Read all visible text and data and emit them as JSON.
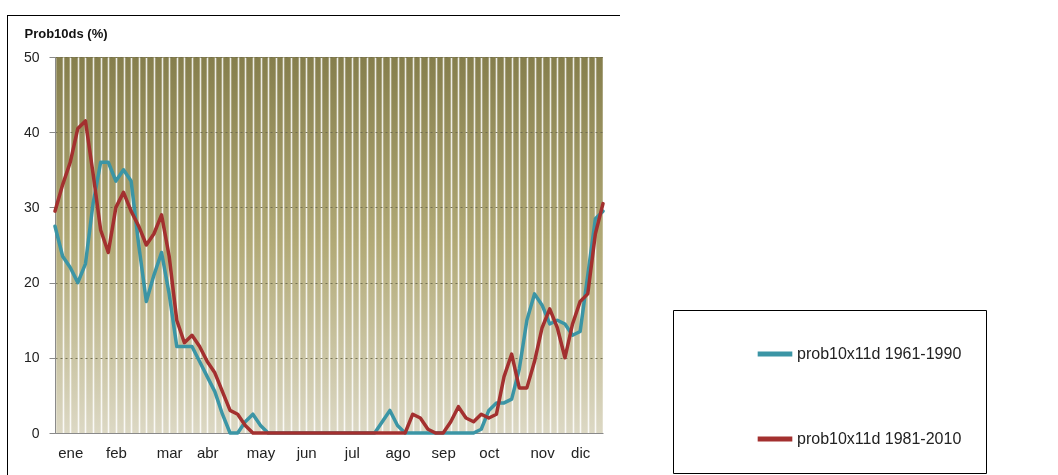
{
  "chart_data": {
    "type": "line",
    "ylabel": "Prob10ds (%)",
    "categories": [
      null,
      null,
      "ene",
      null,
      null,
      null,
      null,
      null,
      "feb",
      null,
      null,
      null,
      null,
      null,
      null,
      "mar",
      null,
      null,
      null,
      null,
      "abr",
      null,
      null,
      null,
      null,
      null,
      null,
      "may",
      null,
      null,
      null,
      null,
      null,
      "jun",
      null,
      null,
      null,
      null,
      null,
      "jul",
      null,
      null,
      null,
      null,
      null,
      "ago",
      null,
      null,
      null,
      null,
      null,
      "sep",
      null,
      null,
      null,
      null,
      null,
      "oct",
      null,
      null,
      null,
      null,
      null,
      null,
      "nov",
      null,
      null,
      null,
      null,
      "dic",
      null,
      null,
      null
    ],
    "series": [
      {
        "name": "prob10x11d 1961-1990",
        "color": "#3b95a5",
        "values": [
          27.5,
          23.5,
          22,
          20,
          22.5,
          30.5,
          36,
          36,
          33.5,
          35,
          33.5,
          25,
          17.5,
          21,
          24,
          18.5,
          11.5,
          11.5,
          11.5,
          9.5,
          7.5,
          5.5,
          2.5,
          0,
          0,
          1.5,
          2.5,
          1,
          0,
          0,
          0,
          0,
          0,
          0,
          0,
          0,
          0,
          0,
          0,
          0,
          0,
          0,
          0,
          1.5,
          3,
          1,
          0,
          0,
          0,
          0,
          0,
          0,
          0,
          0,
          0,
          0,
          0.5,
          3,
          4,
          4,
          4.5,
          8.5,
          15,
          18.5,
          17,
          14.5,
          15,
          14.5,
          13,
          13.5,
          21,
          28.5,
          29.5
        ]
      },
      {
        "name": "prob10x11d 1981-2010",
        "color": "#a3302f",
        "values": [
          29.5,
          33,
          36,
          40.5,
          41.5,
          34.5,
          27,
          24,
          30,
          32,
          29.5,
          27.5,
          25,
          26.5,
          29,
          23.5,
          15,
          12,
          13,
          11.5,
          9.5,
          8,
          5.5,
          3,
          2.5,
          1,
          0,
          0,
          0,
          0,
          0,
          0,
          0,
          0,
          0,
          0,
          0,
          0,
          0,
          0,
          0,
          0,
          0,
          0,
          0,
          0,
          0,
          2.5,
          2,
          0.5,
          0,
          0,
          1.5,
          3.5,
          2,
          1.5,
          2.5,
          2,
          2.5,
          7.5,
          10.5,
          6,
          6,
          9.5,
          14,
          16.5,
          14,
          10,
          14.5,
          17.5,
          18.5,
          26.5,
          30.5
        ]
      }
    ],
    "ylim": [
      0,
      50
    ],
    "yticks": [
      0,
      10,
      20,
      30,
      40,
      50
    ],
    "grid": true,
    "legend": "bottom right"
  }
}
